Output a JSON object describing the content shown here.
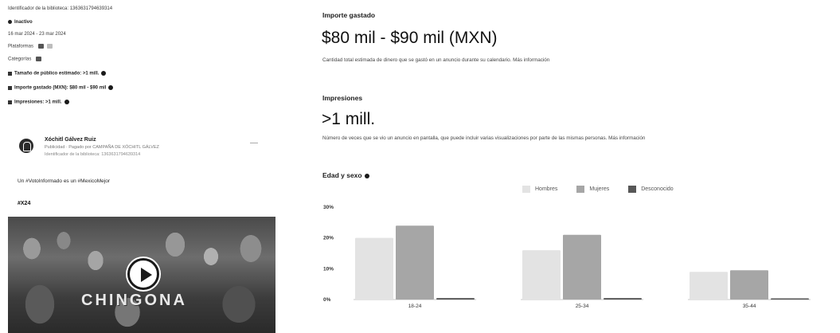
{
  "left_panel": {
    "library_id": "Identificador de la biblioteca: 1363631794639314",
    "status_label": "Inactivo",
    "date_range": "16 mar 2024 - 23 mar 2024",
    "platforms_label": "Plataformas",
    "categories_label": "Categorías",
    "audience_size": "Tamaño de público estimado: >1 mill.",
    "amount_spent": "Importe gastado (MXN): $80 mil - $90 mil",
    "impressions": "Impresiones: >1 mill.",
    "advertiser": {
      "name": "Xóchitl Gálvez Ruiz",
      "sponsor": "Publicidad · Pagado por CAMPAÑA DE XÓCHITL GÁLVEZ",
      "library_id": "Identificador de la biblioteca: 1363631794639314"
    },
    "caption": "Un #VotoInformado es un #MexicoMejor",
    "hashtag": "#X24",
    "video_overlay": "CHINGONA"
  },
  "spend": {
    "label": "Importe gastado",
    "value": "$80 mil - $90 mil (MXN)",
    "description": "Cantidad total estimada de dinero que se gastó en un anuncio durante su calendario. Más información"
  },
  "impressions_section": {
    "label": "Impresiones",
    "value": ">1 mill.",
    "description": "Número de veces que se vio un anuncio en pantalla, que puede incluir varias visualizaciones por parte de las mismas personas. Más información"
  },
  "demographics": {
    "label": "Edad y sexo"
  },
  "colors": {
    "hombres": "#e3e3e3",
    "mujeres": "#a6a6a6",
    "desconocido": "#575757",
    "axis": "#c9c9c9"
  },
  "chart_data": {
    "type": "bar",
    "title": "",
    "categories": [
      "18-24",
      "25-34",
      "35-44"
    ],
    "series": [
      {
        "name": "Hombres",
        "values": [
          20,
          16,
          9
        ]
      },
      {
        "name": "Mujeres",
        "values": [
          24,
          21,
          9.5
        ]
      },
      {
        "name": "Desconocido",
        "values": [
          0.5,
          0.5,
          0.4
        ]
      }
    ],
    "yticks": [
      "0%",
      "10%",
      "20%",
      "30%"
    ],
    "ylim": [
      0,
      30
    ],
    "legend_position": "top",
    "grid": false
  }
}
